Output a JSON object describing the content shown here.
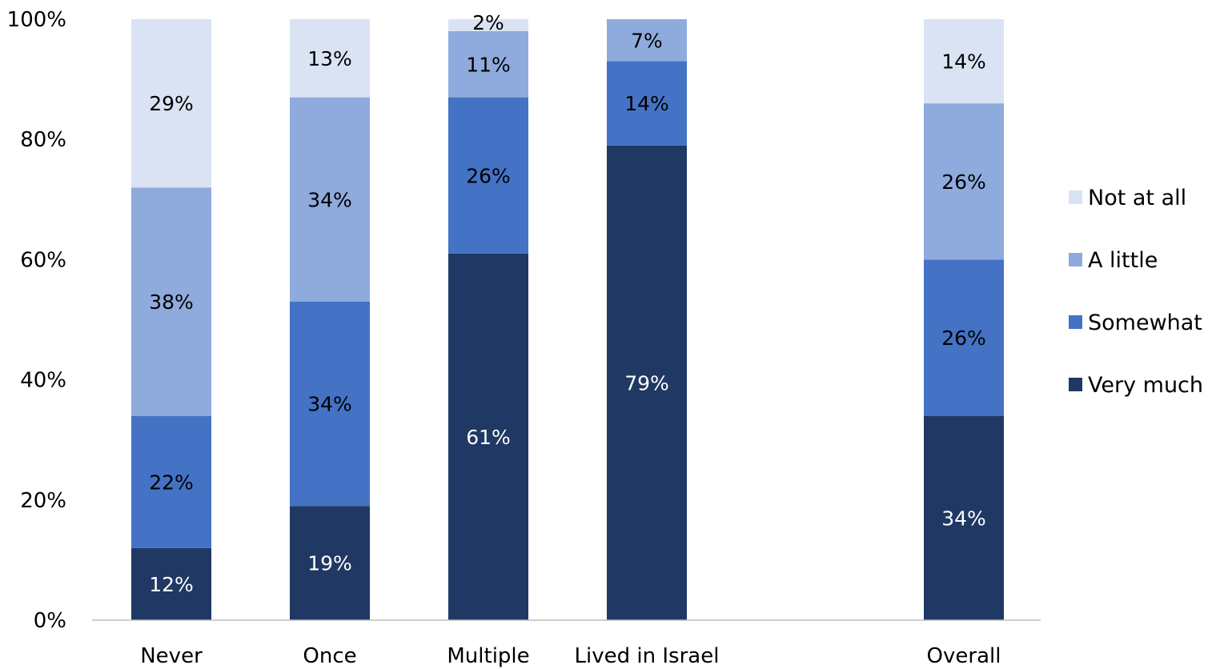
{
  "chart_data": {
    "type": "bar",
    "stacked": true,
    "categories": [
      "Never",
      "Once",
      "Multiple",
      "Lived in Israel",
      "",
      "Overall"
    ],
    "series": [
      {
        "name": "Very much",
        "color": "#203864",
        "label_color": "#ffffff",
        "values": [
          12,
          19,
          61,
          79,
          null,
          34
        ]
      },
      {
        "name": "Somewhat",
        "color": "#4472c4",
        "label_color": "#000000",
        "values": [
          22,
          34,
          26,
          14,
          null,
          26
        ]
      },
      {
        "name": "A little",
        "color": "#8faadc",
        "label_color": "#000000",
        "values": [
          38,
          34,
          11,
          7,
          null,
          26
        ]
      },
      {
        "name": "Not at all",
        "color": "#dae3f3",
        "label_color": "#000000",
        "values": [
          29,
          13,
          2,
          0,
          null,
          14
        ]
      }
    ],
    "data_label_suffix": "%",
    "y_ticks": [
      "0%",
      "20%",
      "40%",
      "60%",
      "80%",
      "100%"
    ],
    "ylim": [
      0,
      100
    ],
    "grid": false,
    "legend": {
      "position": "right",
      "order": [
        "Not at all",
        "A little",
        "Somewhat",
        "Very much"
      ]
    }
  }
}
